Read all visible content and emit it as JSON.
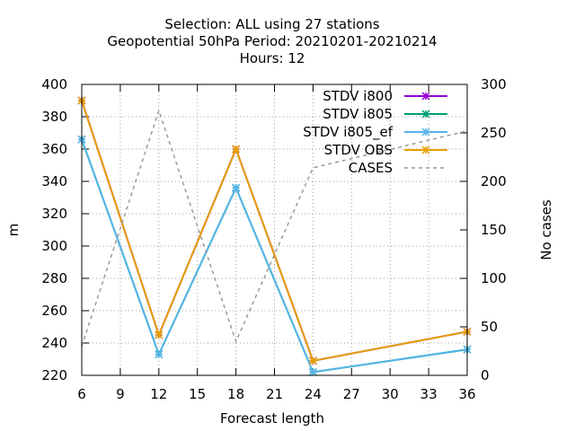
{
  "chart_data": {
    "type": "line",
    "title_lines": [
      "Selection: ALL using    27 stations",
      "Geopotential 50hPa   Period: 20210201-20210214",
      "Hours:  12"
    ],
    "xlabel": "Forecast length",
    "ylabel": "m",
    "y2label": "No cases",
    "x": [
      6,
      12,
      18,
      24,
      36
    ],
    "xlim": [
      6,
      36
    ],
    "ylim": [
      220,
      400
    ],
    "y2lim": [
      0,
      300
    ],
    "xticks": [
      6,
      9,
      12,
      15,
      18,
      21,
      24,
      27,
      30,
      33,
      36
    ],
    "yticks": [
      220,
      240,
      260,
      280,
      300,
      320,
      340,
      360,
      380,
      400
    ],
    "y2ticks": [
      0,
      50,
      100,
      150,
      200,
      250,
      300
    ],
    "grid": true,
    "legend_position": "top-right",
    "series": [
      {
        "name": "STDV i800",
        "color": "#9400d3",
        "style": "solid",
        "axis": "y",
        "marker": "asterisk",
        "values": [
          390,
          245,
          360,
          229,
          247
        ]
      },
      {
        "name": "STDV i805",
        "color": "#009e73",
        "style": "solid",
        "axis": "y",
        "marker": "asterisk",
        "values": [
          366,
          233,
          336,
          222,
          236
        ]
      },
      {
        "name": "STDV i805_ef",
        "color": "#56b4e9",
        "style": "solid",
        "axis": "y",
        "marker": "asterisk",
        "values": [
          366,
          233,
          336,
          222,
          236
        ]
      },
      {
        "name": "STDV OBS",
        "color": "#e69f00",
        "style": "solid",
        "axis": "y",
        "marker": "asterisk",
        "values": [
          390,
          245,
          360,
          229,
          247
        ]
      },
      {
        "name": "CASES",
        "color": "#999999",
        "style": "dashed",
        "axis": "y2",
        "marker": "none",
        "values": [
          30,
          273,
          35,
          214,
          252
        ]
      }
    ]
  }
}
